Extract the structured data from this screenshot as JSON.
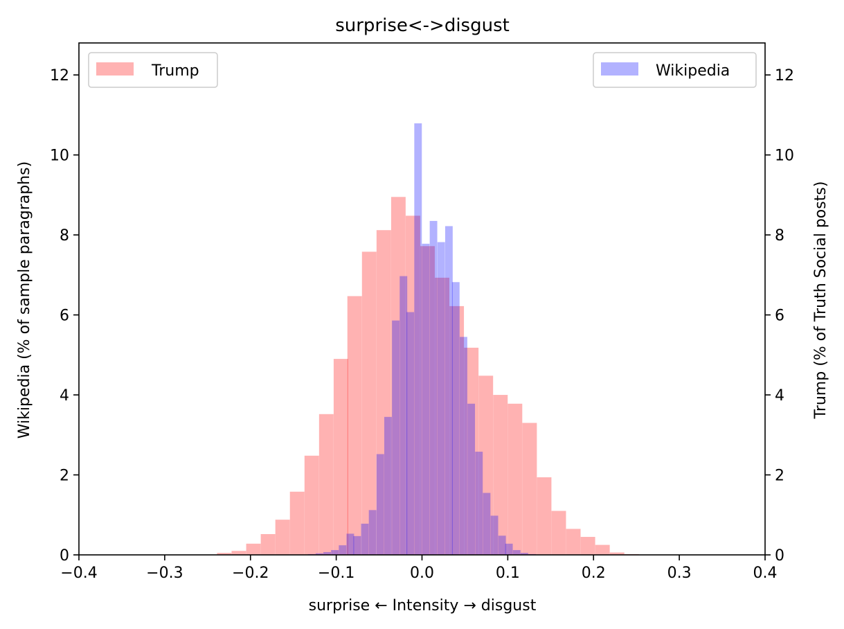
{
  "chart_data": {
    "type": "bar",
    "title": "surprise<->disgust",
    "xlabel": "surprise ← Intensity → disgust",
    "ylabel_left": "Wikipedia (% of sample paragraphs)",
    "ylabel_right": "Trump (% of Truth Social posts)",
    "xlim": [
      -0.4,
      0.4
    ],
    "ylim_left": [
      0,
      12.8
    ],
    "ylim_right": [
      0,
      12.8
    ],
    "xticks": [
      "−0.4",
      "−0.3",
      "−0.2",
      "−0.1",
      "0.0",
      "0.1",
      "0.2",
      "0.3",
      "0.4"
    ],
    "xtick_values": [
      -0.4,
      -0.3,
      -0.2,
      -0.1,
      0.0,
      0.1,
      0.2,
      0.3,
      0.4
    ],
    "yticks_left": [
      "0",
      "2",
      "4",
      "6",
      "8",
      "10",
      "12"
    ],
    "yticks_right": [
      "0",
      "2",
      "4",
      "6",
      "8",
      "10",
      "12"
    ],
    "ytick_values": [
      0,
      2,
      4,
      6,
      8,
      10,
      12
    ],
    "legend_left": {
      "position": "upper-left",
      "label": "Trump"
    },
    "legend_right": {
      "position": "upper-right",
      "label": "Wikipedia"
    },
    "series": [
      {
        "name": "Trump",
        "axis": "right",
        "color": "#ff0000",
        "alpha": 0.3,
        "bin_width": 0.0169,
        "bins_start": [
          -0.239,
          -0.222,
          -0.205,
          -0.188,
          -0.171,
          -0.154,
          -0.137,
          -0.12,
          -0.103,
          -0.087,
          -0.07,
          -0.053,
          -0.036,
          -0.019,
          -0.002,
          0.015,
          0.032,
          0.049,
          0.066,
          0.083,
          0.1,
          0.117,
          0.134,
          0.151,
          0.168,
          0.185,
          0.202,
          0.219,
          0.236
        ],
        "values": [
          0.05,
          0.1,
          0.28,
          0.52,
          0.88,
          1.58,
          2.48,
          3.52,
          4.9,
          6.47,
          7.58,
          8.12,
          8.95,
          8.48,
          7.72,
          6.93,
          6.22,
          5.18,
          4.48,
          4.0,
          3.78,
          3.3,
          1.94,
          1.1,
          0.65,
          0.45,
          0.25,
          0.06,
          0.02
        ]
      },
      {
        "name": "Wikipedia",
        "axis": "left",
        "color": "#0000ff",
        "alpha": 0.3,
        "bin_width": 0.0088,
        "bins_start": [
          -0.133,
          -0.124,
          -0.115,
          -0.106,
          -0.097,
          -0.088,
          -0.08,
          -0.071,
          -0.062,
          -0.053,
          -0.044,
          -0.035,
          -0.026,
          -0.018,
          -0.009,
          0.0,
          0.009,
          0.018,
          0.027,
          0.035,
          0.044,
          0.053,
          0.062,
          0.071,
          0.08,
          0.089,
          0.097,
          0.106,
          0.115,
          0.124
        ],
        "values": [
          0.02,
          0.04,
          0.07,
          0.12,
          0.24,
          0.53,
          0.47,
          0.78,
          1.12,
          2.52,
          3.45,
          5.86,
          6.97,
          6.07,
          10.79,
          7.78,
          8.35,
          7.82,
          8.22,
          6.82,
          5.45,
          3.78,
          2.58,
          1.55,
          0.98,
          0.48,
          0.28,
          0.12,
          0.05,
          0.02
        ]
      }
    ]
  }
}
